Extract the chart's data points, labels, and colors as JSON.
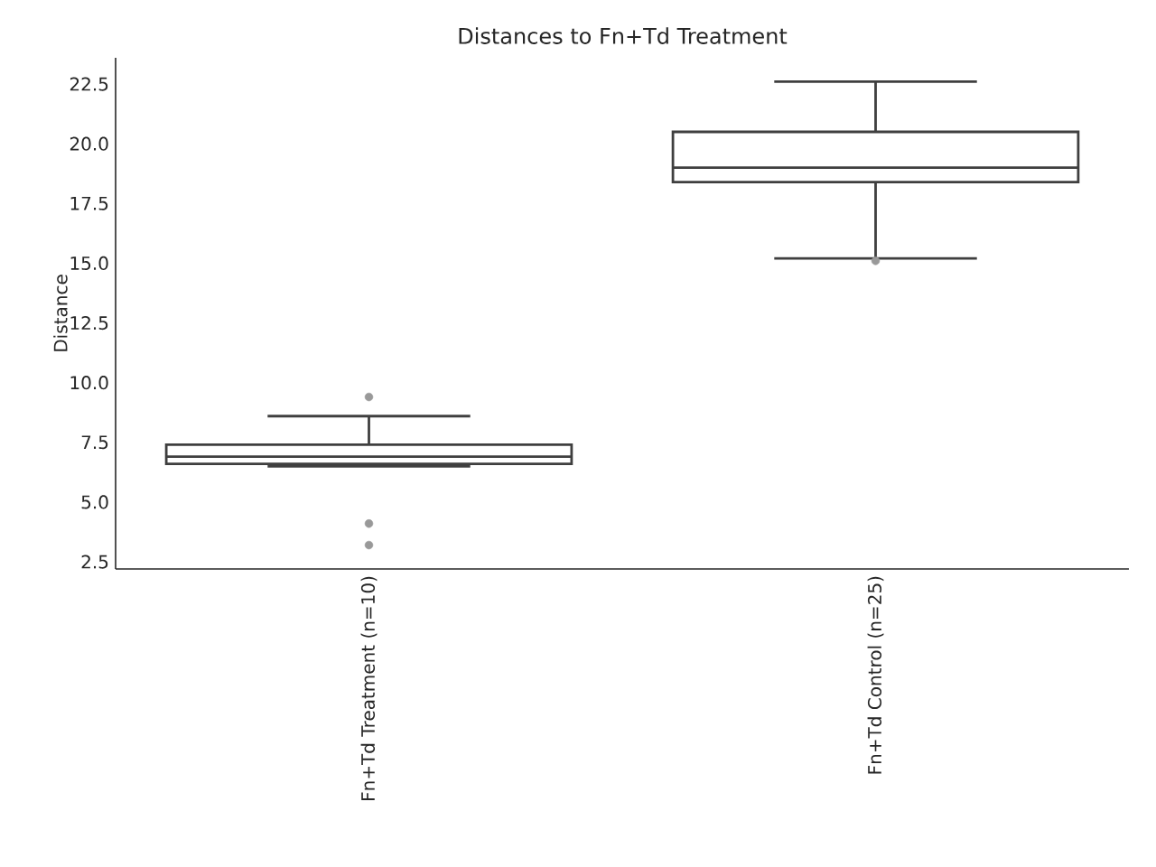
{
  "chart_data": {
    "type": "box",
    "title": "Distances to Fn+Td Treatment",
    "ylabel": "Distance",
    "categories": [
      "Fn+Td Treatment (n=10)",
      "Fn+Td Control (n=25)"
    ],
    "color": "#3f3f3f",
    "boxes": [
      {
        "low": 6.5,
        "q1": 6.6,
        "median": 6.9,
        "q3": 7.4,
        "high": 8.6,
        "outliers": [
          9.4,
          4.1,
          3.2
        ]
      },
      {
        "low": 15.2,
        "q1": 18.4,
        "median": 19.0,
        "q3": 20.5,
        "high": 22.6,
        "outliers": [
          15.1
        ]
      }
    ],
    "ylim": [
      2.2,
      23.6
    ],
    "yticks": [
      {
        "value": 2.5,
        "label": "2.5"
      },
      {
        "value": 5,
        "label": "5.0"
      },
      {
        "value": 7.5,
        "label": "7.5"
      },
      {
        "value": 10,
        "label": "10.0"
      },
      {
        "value": 12.5,
        "label": "12.5"
      },
      {
        "value": 15,
        "label": "15.0"
      },
      {
        "value": 17.5,
        "label": "17.5"
      },
      {
        "value": 20,
        "label": "20.0"
      },
      {
        "value": 22.5,
        "label": "22.5"
      }
    ]
  }
}
